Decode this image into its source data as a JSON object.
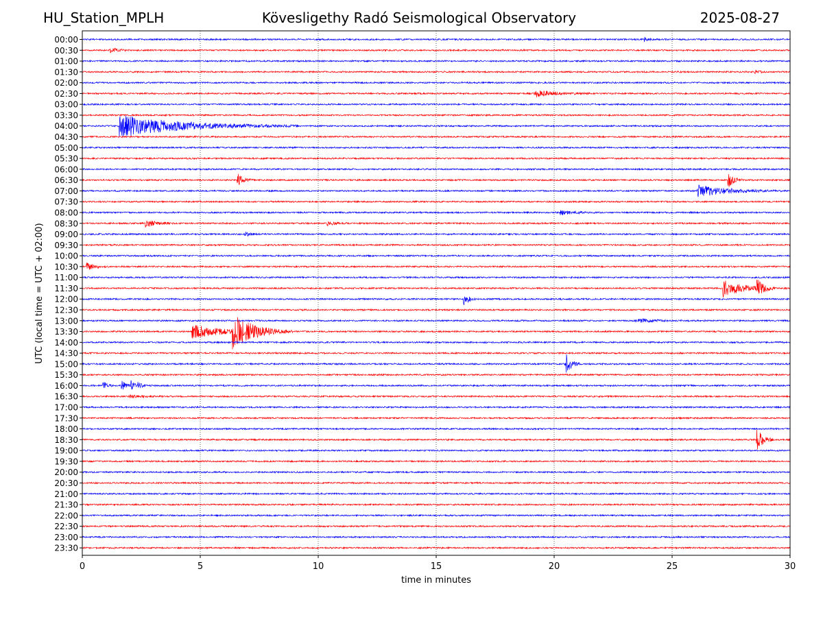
{
  "header": {
    "station": "HU_Station_MPLH",
    "title": "Kövesligethy Radó Seismological Observatory",
    "date": "2025-08-27"
  },
  "chart_data": {
    "type": "line",
    "title": "Kövesligethy Radó Seismological Observatory",
    "xlabel": "time in minutes",
    "ylabel": "UTC (local time = UTC + 02:00)",
    "xlim": [
      0,
      30
    ],
    "x_ticks": [
      "0",
      "5",
      "10",
      "15",
      "20",
      "25",
      "30"
    ],
    "x_tick_values": [
      0,
      5,
      10,
      15,
      20,
      25,
      30
    ],
    "vertical_grid": true,
    "grid_style": "dotted",
    "trace_colors": [
      "#0000ff",
      "#ff0000"
    ],
    "rows": [
      "00:00",
      "00:30",
      "01:00",
      "01:30",
      "02:00",
      "02:30",
      "03:00",
      "03:30",
      "04:00",
      "04:30",
      "05:00",
      "05:30",
      "06:00",
      "06:30",
      "07:00",
      "07:30",
      "08:00",
      "08:30",
      "09:00",
      "09:30",
      "10:00",
      "10:30",
      "11:00",
      "11:30",
      "12:00",
      "12:30",
      "13:00",
      "13:30",
      "14:00",
      "14:30",
      "15:00",
      "15:30",
      "16:00",
      "16:30",
      "17:00",
      "17:30",
      "18:00",
      "18:30",
      "19:00",
      "19:30",
      "20:00",
      "20:30",
      "21:00",
      "21:30",
      "22:00",
      "22:30",
      "23:00",
      "23:30"
    ],
    "events": [
      {
        "row": "00:00",
        "minute": 23.8,
        "amplitude": 0.4,
        "duration": 0.5
      },
      {
        "row": "00:30",
        "minute": 1.2,
        "amplitude": 0.5,
        "duration": 0.8
      },
      {
        "row": "01:30",
        "minute": 28.5,
        "amplitude": 0.3,
        "duration": 0.6
      },
      {
        "row": "02:30",
        "minute": 19.2,
        "amplitude": 0.6,
        "duration": 2.5
      },
      {
        "row": "04:00",
        "minute": 1.6,
        "amplitude": 2.0,
        "duration": 7.5
      },
      {
        "row": "06:30",
        "minute": 6.6,
        "amplitude": 1.0,
        "duration": 0.7
      },
      {
        "row": "06:30",
        "minute": 27.4,
        "amplitude": 1.4,
        "duration": 0.6
      },
      {
        "row": "07:00",
        "minute": 26.1,
        "amplitude": 1.1,
        "duration": 3.5
      },
      {
        "row": "08:00",
        "minute": 20.3,
        "amplitude": 0.4,
        "duration": 1.5
      },
      {
        "row": "08:30",
        "minute": 2.7,
        "amplitude": 0.7,
        "duration": 1.2
      },
      {
        "row": "08:30",
        "minute": 10.4,
        "amplitude": 0.4,
        "duration": 0.8
      },
      {
        "row": "09:00",
        "minute": 6.9,
        "amplitude": 0.5,
        "duration": 0.5
      },
      {
        "row": "10:30",
        "minute": 0.2,
        "amplitude": 0.6,
        "duration": 1.0
      },
      {
        "row": "11:30",
        "minute": 27.2,
        "amplitude": 1.6,
        "duration": 2.2
      },
      {
        "row": "11:30",
        "minute": 28.6,
        "amplitude": 1.5,
        "duration": 0.8
      },
      {
        "row": "12:00",
        "minute": 16.2,
        "amplitude": 1.0,
        "duration": 0.6
      },
      {
        "row": "13:00",
        "minute": 23.5,
        "amplitude": 0.5,
        "duration": 1.5
      },
      {
        "row": "13:30",
        "minute": 4.7,
        "amplitude": 1.2,
        "duration": 3.5
      },
      {
        "row": "13:30",
        "minute": 6.4,
        "amplitude": 3.0,
        "duration": 2.5
      },
      {
        "row": "15:00",
        "minute": 20.5,
        "amplitude": 2.0,
        "duration": 0.6
      },
      {
        "row": "16:00",
        "minute": 0.9,
        "amplitude": 0.7,
        "duration": 0.4
      },
      {
        "row": "16:00",
        "minute": 1.7,
        "amplitude": 0.8,
        "duration": 0.4
      },
      {
        "row": "16:00",
        "minute": 2.1,
        "amplitude": 0.9,
        "duration": 0.3
      },
      {
        "row": "16:00",
        "minute": 2.4,
        "amplitude": 0.7,
        "duration": 0.3
      },
      {
        "row": "16:30",
        "minute": 2.0,
        "amplitude": 0.3,
        "duration": 1.5
      },
      {
        "row": "18:30",
        "minute": 28.6,
        "amplitude": 2.2,
        "duration": 0.7
      }
    ]
  }
}
